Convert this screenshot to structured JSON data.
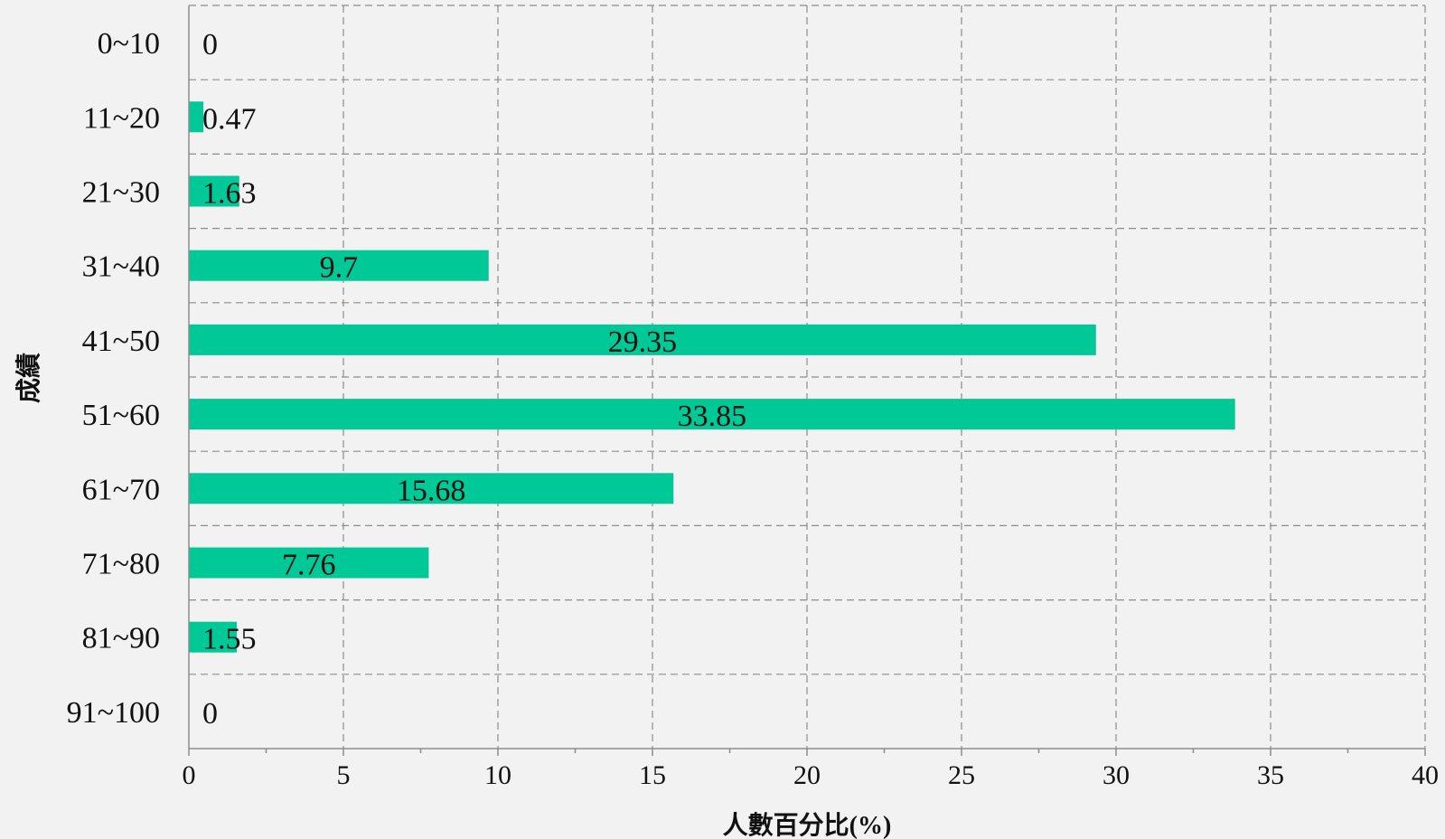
{
  "chart_data": {
    "type": "bar",
    "orientation": "horizontal",
    "categories": [
      "0~10",
      "11~20",
      "21~30",
      "31~40",
      "41~50",
      "51~60",
      "61~70",
      "71~80",
      "81~90",
      "91~100"
    ],
    "values": [
      0,
      0.47,
      1.63,
      9.7,
      29.35,
      33.85,
      15.68,
      7.76,
      1.55,
      0
    ],
    "value_labels": [
      "0",
      "0.47",
      "1.63",
      "9.7",
      "29.35",
      "33.85",
      "15.68",
      "7.76",
      "1.55",
      "0"
    ],
    "xlabel": "人數百分比(%)",
    "ylabel": "成績",
    "xlim": [
      0,
      40
    ],
    "x_ticks": [
      "0",
      "5",
      "10",
      "15",
      "20",
      "25",
      "30",
      "35",
      "40"
    ],
    "grid": true,
    "colors": {
      "bar": "#00c896",
      "grid": "#8c8c8c",
      "background": "#f2f2f2"
    }
  }
}
